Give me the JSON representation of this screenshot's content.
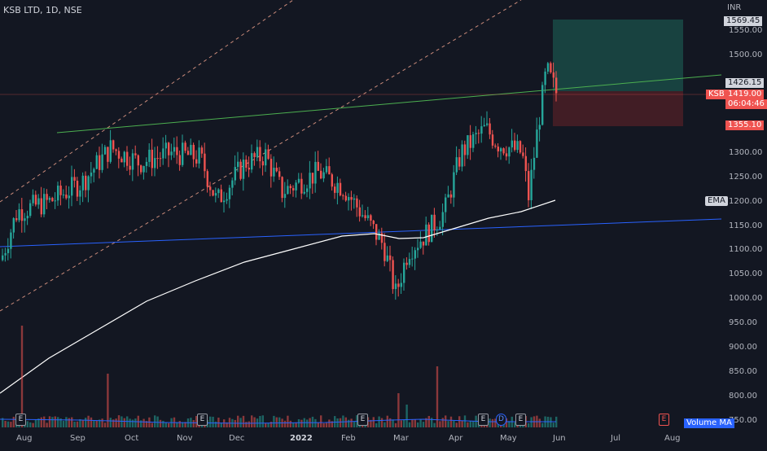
{
  "header": {
    "title": "KSB LTD, 1D, NSE"
  },
  "axis": {
    "currency": "INR",
    "y_ticks": [
      "1550.00",
      "1500.00",
      "1300.00",
      "1250.00",
      "1200.00",
      "1150.00",
      "1100.00",
      "1050.00",
      "1000.00",
      "950.00",
      "900.00",
      "850.00",
      "800.00",
      "750.00"
    ],
    "x_ticks": [
      "Aug",
      "Sep",
      "Oct",
      "Nov",
      "Dec",
      "2022",
      "Feb",
      "Mar",
      "Apr",
      "May",
      "Jun",
      "Jul",
      "Aug"
    ]
  },
  "price_tags": {
    "target": "1569.45",
    "last": "1426.15",
    "symbol": "KSB",
    "current": "1419.00",
    "countdown": "06:04:46",
    "stop": "1355.10",
    "ema": "EMA"
  },
  "volume": {
    "label": "Volume MA"
  },
  "events": {
    "earnings": "E",
    "dividend": "D"
  },
  "colors": {
    "background": "#131722",
    "up": "#26a69a",
    "down": "#ef5350",
    "green_line": "#4caf50",
    "blue_line": "#2962ff",
    "ema": "#ffffff",
    "target_zone": "#1a4a45",
    "stop_zone": "#4a1f26"
  },
  "chart_data": {
    "type": "candlestick",
    "instrument": "KSB LTD",
    "interval": "1D",
    "exchange": "NSE",
    "price_range": [
      730,
      1600
    ],
    "last_price": 1419.0,
    "indicators": [
      "EMA",
      "Volume MA"
    ],
    "trade_zone": {
      "target": 1569.45,
      "entry": 1419.0,
      "stop": 1355.1
    }
  }
}
